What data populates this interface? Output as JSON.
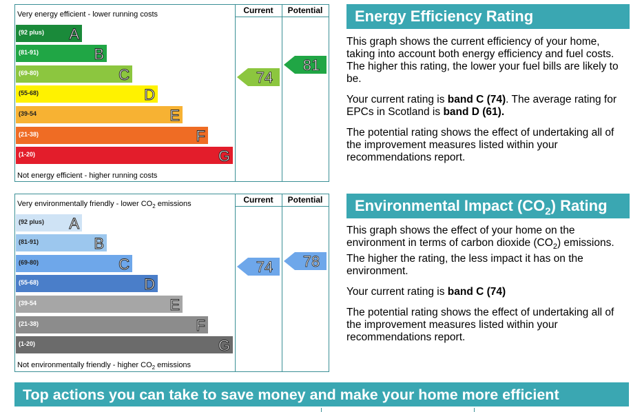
{
  "energy_efficiency": {
    "top_caption": "Very energy efficient - lower running costs",
    "bottom_caption": "Not energy efficient - higher running costs",
    "col_current": "Current",
    "col_potential": "Potential",
    "bands": [
      {
        "range": "(92 plus)",
        "letter": "A",
        "color": "#1a8a3a"
      },
      {
        "range": "(81-91)",
        "letter": "B",
        "color": "#20a645"
      },
      {
        "range": "(69-80)",
        "letter": "C",
        "color": "#8cc63f"
      },
      {
        "range": "(55-68)",
        "letter": "D",
        "color": "#fff200"
      },
      {
        "range": "(39-54",
        "letter": "E",
        "color": "#f7b233"
      },
      {
        "range": "(21-38)",
        "letter": "F",
        "color": "#ef6c24"
      },
      {
        "range": "(1-20)",
        "letter": "G",
        "color": "#e31d2b"
      }
    ],
    "current_value": "74",
    "current_color": "#8cc63f",
    "potential_value": "81",
    "potential_color": "#20a645"
  },
  "environmental_impact": {
    "top_caption": "Very environmentally friendly - lower CO",
    "top_caption_sub": "2",
    "top_caption_tail": " emissions",
    "bottom_caption": "Not environmentally friendly - higher CO",
    "bottom_caption_sub": "2",
    "bottom_caption_tail": " emissions",
    "col_current": "Current",
    "col_potential": "Potential",
    "bands": [
      {
        "range": "(92 plus)",
        "letter": "A",
        "color": "#cfe3f5"
      },
      {
        "range": "(81-91)",
        "letter": "B",
        "color": "#9cc7ee"
      },
      {
        "range": "(69-80)",
        "letter": "C",
        "color": "#6ea7ea"
      },
      {
        "range": "(55-68)",
        "letter": "D",
        "color": "#4a7ec9"
      },
      {
        "range": "(39-54",
        "letter": "E",
        "color": "#a6a6a6"
      },
      {
        "range": "(21-38)",
        "letter": "F",
        "color": "#8c8c8c"
      },
      {
        "range": "(1-20)",
        "letter": "G",
        "color": "#6b6b6b"
      }
    ],
    "current_value": "74",
    "current_color": "#6ea7ea",
    "potential_value": "78",
    "potential_color": "#6ea7ea"
  },
  "eer_text": {
    "title": "Energy Efficiency Rating",
    "p1": "This graph shows the current efficiency of your home, taking into account both energy efficiency and fuel costs. The higher this rating, the lower your fuel bills are likely to be.",
    "p2_pre": "Your current rating is ",
    "p2_band": "band C (74)",
    "p2_mid": ". The average rating for EPCs in Scotland is ",
    "p2_avg": "band D (61).",
    "p3": "The potential rating shows the effect of undertaking all of the improvement measures listed within your recommendations report."
  },
  "ei_text": {
    "title_pre": "Environmental Impact (CO",
    "title_sub": "2",
    "title_post": ") Rating",
    "p1_pre": "This graph shows the effect of your home on the environment in terms of carbon dioxide (CO",
    "p1_sub": "2",
    "p1_post": ") emissions. The higher the rating, the less impact it has on the environment.",
    "p2_pre": "Your current rating is ",
    "p2_band": "band C (74)",
    "p3": "The potential rating shows the effect of undertaking all of the improvement measures listed within your recommendations report."
  },
  "top_actions": {
    "title": "Top actions you can take to save money and make your home more efficient"
  }
}
